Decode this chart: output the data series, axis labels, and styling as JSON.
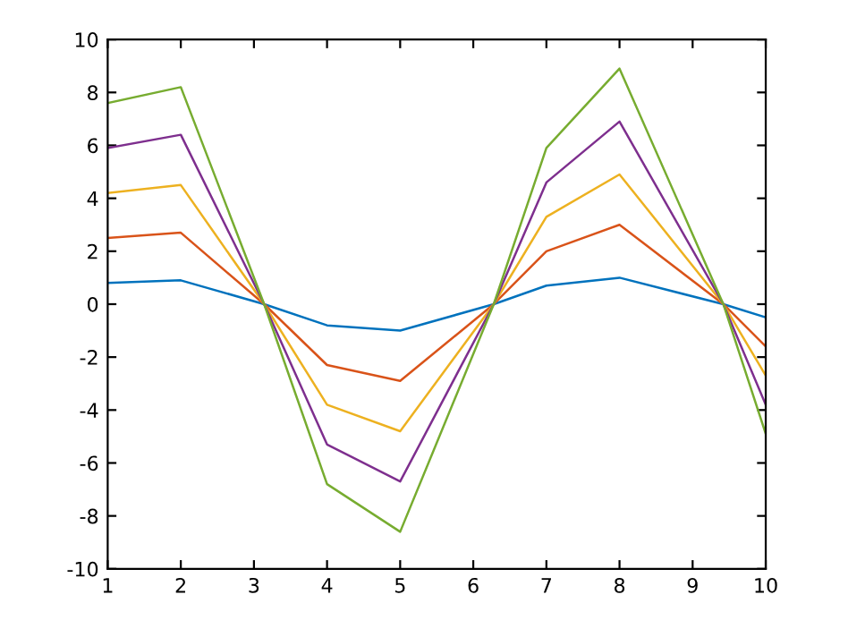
{
  "chart_data": {
    "type": "line",
    "x": [
      1,
      2,
      3.14,
      4,
      5,
      6.28,
      7,
      8,
      9.42,
      10
    ],
    "series": [
      {
        "color": "#0072bd",
        "values": [
          0.8,
          0.9,
          0,
          -0.8,
          -1.0,
          0,
          0.7,
          1.0,
          0,
          -0.5
        ]
      },
      {
        "color": "#d95319",
        "values": [
          2.5,
          2.7,
          0,
          -2.3,
          -2.9,
          0,
          2.0,
          3.0,
          0,
          -1.6
        ]
      },
      {
        "color": "#edb120",
        "values": [
          4.2,
          4.5,
          0,
          -3.8,
          -4.8,
          0,
          3.3,
          4.9,
          0,
          -2.7
        ]
      },
      {
        "color": "#7e2f8e",
        "values": [
          5.9,
          6.4,
          0,
          -5.3,
          -6.7,
          0,
          4.6,
          6.9,
          0,
          -3.8
        ]
      },
      {
        "color": "#77ac30",
        "values": [
          7.6,
          8.2,
          0,
          -6.8,
          -8.6,
          0,
          5.9,
          8.9,
          0,
          -4.9
        ]
      }
    ],
    "xlim": [
      1,
      10
    ],
    "xticks": [
      1,
      2,
      3,
      4,
      5,
      6,
      7,
      8,
      9,
      10
    ],
    "ylim": [
      -10,
      10
    ],
    "yticks": [
      -10,
      -8,
      -6,
      -4,
      -2,
      0,
      2,
      4,
      6,
      8,
      10
    ],
    "grid": false,
    "marker": "none",
    "line_style": "solid"
  }
}
